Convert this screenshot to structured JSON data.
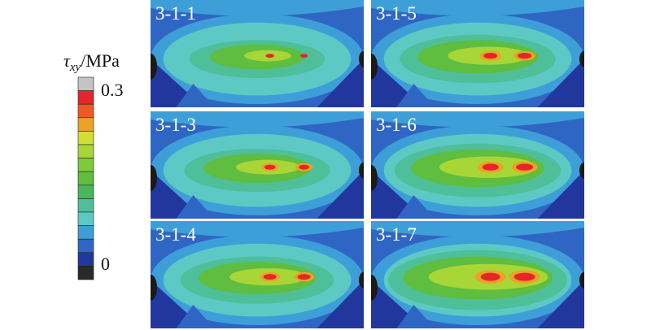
{
  "legend": {
    "title_symbol": "τ",
    "title_subscript": "xy",
    "title_unit": "/MPa",
    "max_label": "0.3",
    "min_label": "0"
  },
  "panels": [
    {
      "label": "3-1-1"
    },
    {
      "label": "3-1-5"
    },
    {
      "label": "3-1-3"
    },
    {
      "label": "3-1-6"
    },
    {
      "label": "3-1-4"
    },
    {
      "label": "3-1-7"
    }
  ]
}
